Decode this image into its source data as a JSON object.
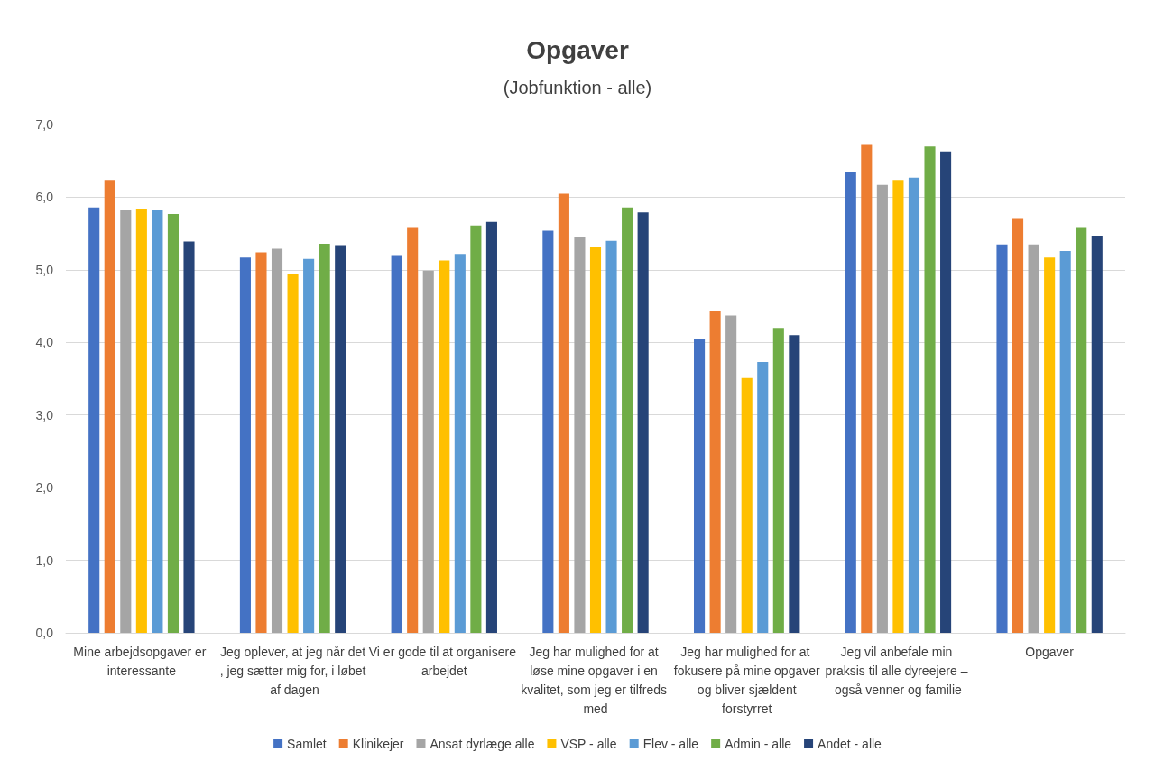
{
  "chart_data": {
    "type": "bar",
    "title": "Opgaver",
    "subtitle": "(Jobfunktion - alle)",
    "categories": [
      "Mine arbejdsopgaver er interessante",
      "Jeg oplever, at jeg når det, jeg sætter mig for, i løbet af dagen",
      "Vi er gode til at organisere arbejdet",
      "Jeg har mulighed for at løse mine opgaver i en kvalitet, som jeg er tilfreds med",
      "Jeg har mulighed for at fokusere på mine opgaver og bliver sjældent forstyrret",
      "Jeg vil anbefale min praksis til alle dyreejere – også venner og familie",
      "Opgaver"
    ],
    "series": [
      {
        "name": "Samlet",
        "color": "#4472c4",
        "values": [
          5.86,
          5.17,
          5.19,
          5.54,
          4.05,
          6.34,
          5.35
        ]
      },
      {
        "name": "Klinikejer",
        "color": "#ed7d31",
        "values": [
          6.24,
          5.24,
          5.59,
          6.05,
          4.44,
          6.72,
          5.7
        ]
      },
      {
        "name": "Ansat dyrlæge alle",
        "color": "#a5a5a5",
        "values": [
          5.82,
          5.29,
          4.99,
          5.45,
          4.37,
          6.17,
          5.35
        ]
      },
      {
        "name": "VSP - alle",
        "color": "#ffc000",
        "values": [
          5.84,
          4.94,
          5.13,
          5.31,
          3.51,
          6.24,
          5.17
        ]
      },
      {
        "name": "Elev - alle",
        "color": "#5b9bd5",
        "values": [
          5.82,
          5.15,
          5.22,
          5.4,
          3.73,
          6.27,
          5.26
        ]
      },
      {
        "name": "Admin - alle",
        "color": "#70ad47",
        "values": [
          5.77,
          5.36,
          5.61,
          5.86,
          4.2,
          6.7,
          5.59
        ]
      },
      {
        "name": "Andet - alle",
        "color": "#264478",
        "values": [
          5.39,
          5.34,
          5.66,
          5.79,
          4.1,
          6.63,
          5.47
        ]
      }
    ],
    "ylim": [
      0,
      7
    ],
    "yticks": [
      {
        "value": 0,
        "label": "0,0"
      },
      {
        "value": 1,
        "label": "1,0"
      },
      {
        "value": 2,
        "label": "2,0"
      },
      {
        "value": 3,
        "label": "3,0"
      },
      {
        "value": 4,
        "label": "4,0"
      },
      {
        "value": 5,
        "label": "5,0"
      },
      {
        "value": 6,
        "label": "6,0"
      },
      {
        "value": 7,
        "label": "7,0"
      }
    ],
    "grid": "y",
    "legend": "bottom"
  }
}
